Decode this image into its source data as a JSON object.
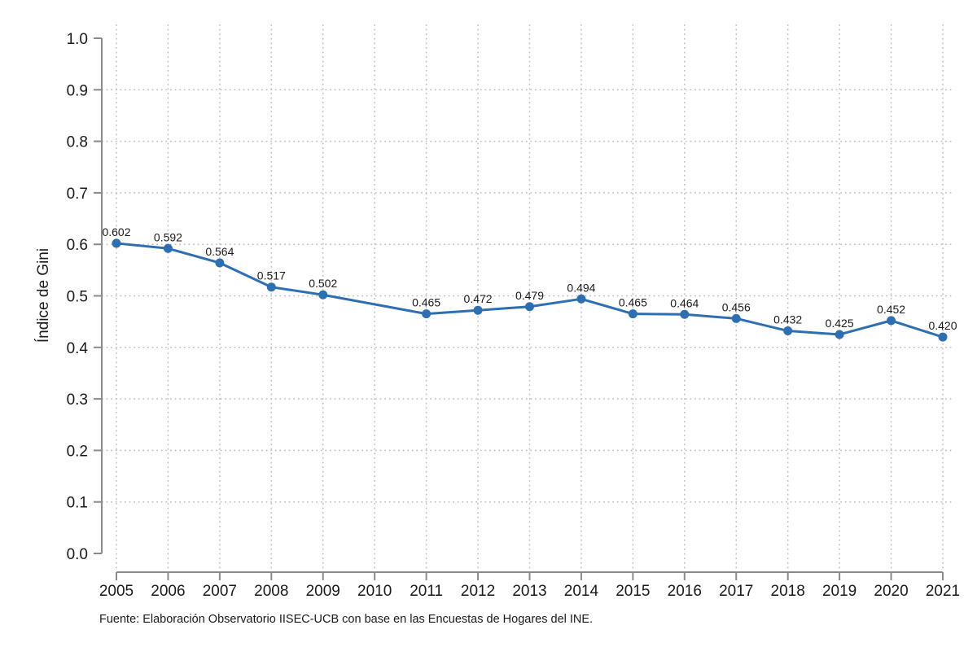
{
  "chart_data": {
    "type": "line",
    "title": "",
    "xlabel": "",
    "ylabel": "Índice de Gini",
    "categories": [
      "2005",
      "2006",
      "2007",
      "2008",
      "2009",
      "2010",
      "2011",
      "2012",
      "2013",
      "2014",
      "2015",
      "2016",
      "2017",
      "2018",
      "2019",
      "2020",
      "2021"
    ],
    "series": [
      {
        "name": "Índice de Gini",
        "values": [
          0.602,
          0.592,
          0.564,
          0.517,
          0.502,
          null,
          0.465,
          0.472,
          0.479,
          0.494,
          0.465,
          0.464,
          0.456,
          0.432,
          0.425,
          0.452,
          0.42
        ],
        "point_labels": [
          "0.602",
          "0.592",
          "0.564",
          "0.517",
          "0.502",
          "",
          "0.465",
          "0.472",
          "0.479",
          "0.494",
          "0.465",
          "0.464",
          "0.456",
          "0.432",
          "0.425",
          "0.452",
          "0.420"
        ]
      }
    ],
    "ylim": [
      0.0,
      1.0
    ],
    "y_ticks": [
      0.0,
      0.1,
      0.2,
      0.3,
      0.4,
      0.5,
      0.6,
      0.7,
      0.8,
      0.9,
      1.0
    ],
    "y_tick_labels": [
      "0.0",
      "0.1",
      "0.2",
      "0.3",
      "0.4",
      "0.5",
      "0.6",
      "0.7",
      "0.8",
      "0.9",
      "1.0"
    ],
    "grid": "dotted",
    "legend_position": "none",
    "source_note": "Fuente: Elaboración Observatorio IISEC-UCB con base en las Encuestas de Hogares del INE.",
    "colors": {
      "line": "#2e6fb2",
      "axis": "#8a8a8a",
      "grid": "#bfbfbf",
      "text": "#1a1a1a",
      "background": "#ffffff"
    }
  }
}
